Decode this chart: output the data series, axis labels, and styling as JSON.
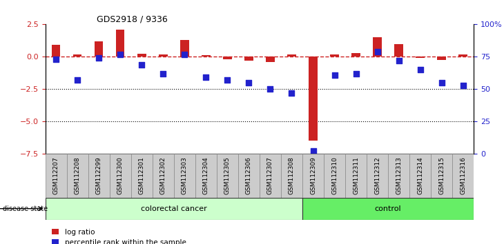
{
  "title": "GDS2918 / 9336",
  "samples": [
    "GSM112207",
    "GSM112208",
    "GSM112299",
    "GSM112300",
    "GSM112301",
    "GSM112302",
    "GSM112303",
    "GSM112304",
    "GSM112305",
    "GSM112306",
    "GSM112307",
    "GSM112308",
    "GSM112309",
    "GSM112310",
    "GSM112311",
    "GSM112312",
    "GSM112313",
    "GSM112314",
    "GSM112315",
    "GSM112316"
  ],
  "log_ratio": [
    0.9,
    0.15,
    1.2,
    2.1,
    0.25,
    0.15,
    1.3,
    0.1,
    -0.2,
    -0.3,
    -0.4,
    0.15,
    -6.5,
    0.15,
    0.3,
    1.5,
    1.0,
    -0.1,
    -0.25,
    0.15
  ],
  "percentile_rank": [
    73,
    57,
    74,
    77,
    69,
    62,
    77,
    59,
    57,
    55,
    50,
    47,
    2,
    61,
    62,
    79,
    72,
    65,
    55,
    53
  ],
  "colorectal_count": 12,
  "ylim_left": [
    -7.5,
    2.5
  ],
  "yticks_left": [
    2.5,
    0.0,
    -2.5,
    -5.0,
    -7.5
  ],
  "yticks_right": [
    0,
    25,
    50,
    75,
    100
  ],
  "ytick_right_labels": [
    "0",
    "25",
    "50",
    "75",
    "100%"
  ],
  "bar_color": "#cc2222",
  "dot_color": "#2222cc",
  "dashed_line_color": "#cc2222",
  "grid_line_color": "#000000",
  "cancer_bg": "#ccffcc",
  "control_bg": "#66ee66",
  "label_disease_state": "disease state",
  "label_colorectal": "colorectal cancer",
  "label_control": "control",
  "legend_bar": "log ratio",
  "legend_dot": "percentile rank within the sample"
}
